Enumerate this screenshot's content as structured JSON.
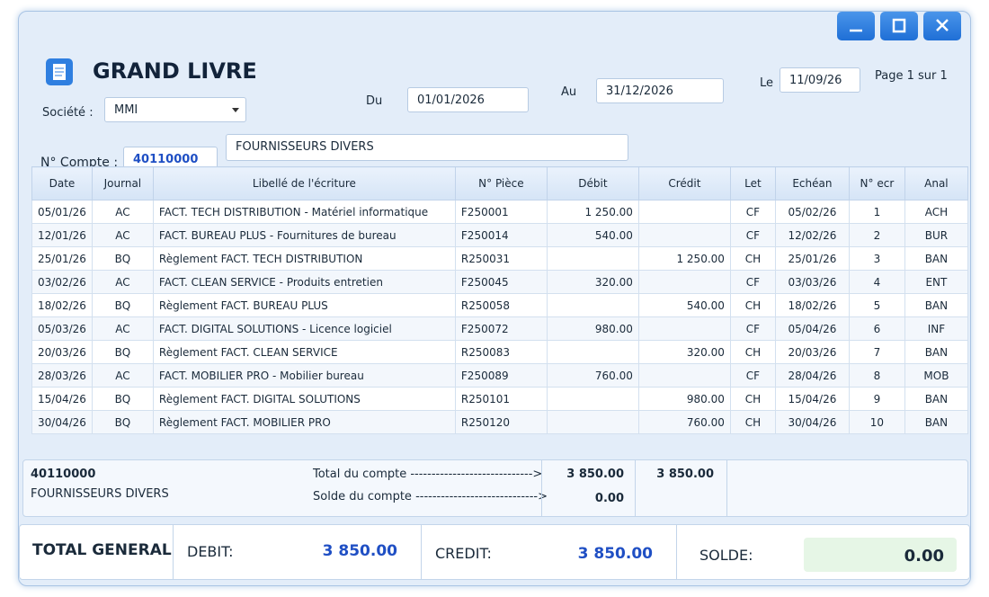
{
  "window": {
    "title": "GRAND LIVRE"
  },
  "filters": {
    "societe_label": "Société :",
    "societe": "MMI",
    "du_label": "Du",
    "du": "01/01/2026",
    "au_label": "Au",
    "au": "31/12/2026",
    "le_label": "Le",
    "le": "11/09/26",
    "page": "Page 1 sur 1"
  },
  "account": {
    "label": "N° Compte :",
    "number": "40110000",
    "name": "FOURNISSEURS DIVERS"
  },
  "table": {
    "headers": [
      "Date",
      "Journal",
      "Libellé de l'écriture",
      "N° Pièce",
      "Débit",
      "Crédit",
      "Let",
      "Echéan",
      "N° ecr",
      "Anal"
    ],
    "rows": [
      {
        "date": "05/01/26",
        "journal": "AC",
        "libelle": "FACT. TECH DISTRIBUTION - Matériel informatique",
        "piece": "F250001",
        "debit": "1 250.00",
        "let": "CF",
        "echeance": "05/02/26",
        "ecr": "1",
        "anal": "ACH"
      },
      {
        "date": "12/01/26",
        "journal": "AC",
        "libelle": "FACT. BUREAU PLUS - Fournitures de bureau",
        "piece": "F250014",
        "debit": "540.00",
        "let": "CF",
        "echeance": "12/02/26",
        "ecr": "2",
        "anal": "BUR"
      },
      {
        "date": "25/01/26",
        "journal": "BQ",
        "libelle": "Règlement FACT. TECH DISTRIBUTION",
        "piece": "R250031",
        "credit": "1 250.00",
        "let": "CH",
        "echeance": "25/01/26",
        "ecr": "3",
        "anal": "BAN"
      },
      {
        "date": "03/02/26",
        "journal": "AC",
        "libelle": "FACT. CLEAN SERVICE - Produits entretien",
        "piece": "F250045",
        "debit": "320.00",
        "let": "CF",
        "echeance": "03/03/26",
        "ecr": "4",
        "anal": "ENT"
      },
      {
        "date": "18/02/26",
        "journal": "BQ",
        "libelle": "Règlement FACT. BUREAU PLUS",
        "piece": "R250058",
        "credit": "540.00",
        "let": "CH",
        "echeance": "18/02/26",
        "ecr": "5",
        "anal": "BAN"
      },
      {
        "date": "05/03/26",
        "journal": "AC",
        "libelle": "FACT. DIGITAL SOLUTIONS - Licence logiciel",
        "piece": "F250072",
        "debit": "980.00",
        "let": "CF",
        "echeance": "05/04/26",
        "ecr": "6",
        "anal": "INF"
      },
      {
        "date": "20/03/26",
        "journal": "BQ",
        "libelle": "Règlement FACT. CLEAN SERVICE",
        "piece": "R250083",
        "credit": "320.00",
        "let": "CH",
        "echeance": "20/03/26",
        "ecr": "7",
        "anal": "BAN"
      },
      {
        "date": "28/03/26",
        "journal": "AC",
        "libelle": "FACT. MOBILIER PRO - Mobilier bureau",
        "piece": "F250089",
        "debit": "760.00",
        "let": "CF",
        "echeance": "28/04/26",
        "ecr": "8",
        "anal": "MOB"
      },
      {
        "date": "15/04/26",
        "journal": "BQ",
        "libelle": "Règlement FACT. DIGITAL SOLUTIONS",
        "piece": "R250101",
        "credit": "980.00",
        "let": "CH",
        "echeance": "15/04/26",
        "ecr": "9",
        "anal": "BAN"
      },
      {
        "date": "30/04/26",
        "journal": "BQ",
        "libelle": "Règlement FACT. MOBILIER PRO",
        "piece": "R250120",
        "credit": "760.00",
        "let": "CH",
        "echeance": "30/04/26",
        "ecr": "10",
        "anal": "BAN"
      }
    ]
  },
  "subtotal": {
    "number": "40110000",
    "name": "FOURNISSEURS DIVERS",
    "total_label": "Total du compte ----------------------------->",
    "debit": "3 850.00",
    "credit": "3 850.00",
    "solde_label": "Solde du compte ----------------------------->",
    "solde": "0.00"
  },
  "total": {
    "label": "TOTAL GENERAL",
    "debit_label": "DEBIT:",
    "debit": "3 850.00",
    "credit_label": "CREDIT:",
    "credit": "3 850.00",
    "solde_label": "SOLDE:",
    "solde": "0.00"
  }
}
